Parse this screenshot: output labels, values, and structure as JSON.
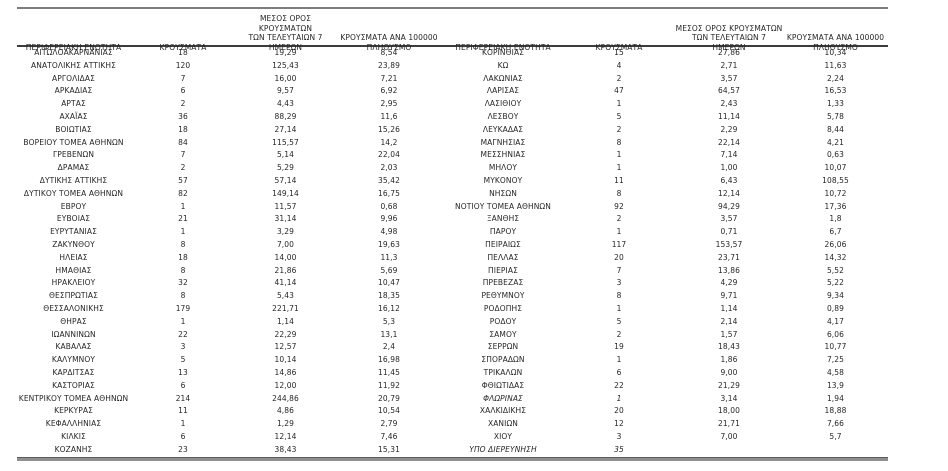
{
  "table": {
    "col_headers": {
      "region": "ΠΕΡΙΦΕΡΕΙΑΚΗ ΕΝΟΤΗΤΑ",
      "cases": "ΚΡΟΥΣΜΑΤΑ",
      "avg7": "ΜΕΣΟΣ ΟΡΟΣ ΚΡΟΥΣΜΑΤΩΝ\nΤΩΝ ΤΕΛΕΥΤΑΙΩΝ 7\nΗΜΕΡΩΝ",
      "per100k": "ΚΡΟΥΣΜΑΤΑ ΑΝΑ 100000\nΠΛΗΘΥΣΜΟ"
    },
    "left_rows": [
      {
        "region": "ΑΙΤΩΛΟΑΚΑΡΝΑΝΙΑΣ",
        "cases": "18",
        "avg7": "19,29",
        "per100k": "8,54"
      },
      {
        "region": "ΑΝΑΤΟΛΙΚΗΣ ΑΤΤΙΚΗΣ",
        "cases": "120",
        "avg7": "125,43",
        "per100k": "23,89"
      },
      {
        "region": "ΑΡΓΟΛΙΔΑΣ",
        "cases": "7",
        "avg7": "16,00",
        "per100k": "7,21"
      },
      {
        "region": "ΑΡΚΑΔΙΑΣ",
        "cases": "6",
        "avg7": "9,57",
        "per100k": "6,92"
      },
      {
        "region": "ΑΡΤΑΣ",
        "cases": "2",
        "avg7": "4,43",
        "per100k": "2,95"
      },
      {
        "region": "ΑΧΑΪΑΣ",
        "cases": "36",
        "avg7": "88,29",
        "per100k": "11,6"
      },
      {
        "region": "ΒΟΙΩΤΙΑΣ",
        "cases": "18",
        "avg7": "27,14",
        "per100k": "15,26"
      },
      {
        "region": "ΒΟΡΕΙΟΥ ΤΟΜΕΑ ΑΘΗΝΩΝ",
        "cases": "84",
        "avg7": "115,57",
        "per100k": "14,2"
      },
      {
        "region": "ΓΡΕΒΕΝΩΝ",
        "cases": "7",
        "avg7": "5,14",
        "per100k": "22,04"
      },
      {
        "region": "ΔΡΑΜΑΣ",
        "cases": "2",
        "avg7": "5,29",
        "per100k": "2,03"
      },
      {
        "region": "ΔΥΤΙΚΗΣ ΑΤΤΙΚΗΣ",
        "cases": "57",
        "avg7": "57,14",
        "per100k": "35,42"
      },
      {
        "region": "ΔΥΤΙΚΟΥ ΤΟΜΕΑ ΑΘΗΝΩΝ",
        "cases": "82",
        "avg7": "149,14",
        "per100k": "16,75"
      },
      {
        "region": "ΕΒΡΟΥ",
        "cases": "1",
        "avg7": "11,57",
        "per100k": "0,68"
      },
      {
        "region": "ΕΥΒΟΙΑΣ",
        "cases": "21",
        "avg7": "31,14",
        "per100k": "9,96"
      },
      {
        "region": "ΕΥΡΥΤΑΝΙΑΣ",
        "cases": "1",
        "avg7": "3,29",
        "per100k": "4,98"
      },
      {
        "region": "ΖΑΚΥΝΘΟΥ",
        "cases": "8",
        "avg7": "7,00",
        "per100k": "19,63"
      },
      {
        "region": "ΗΛΕΙΑΣ",
        "cases": "18",
        "avg7": "14,00",
        "per100k": "11,3"
      },
      {
        "region": "ΗΜΑΘΙΑΣ",
        "cases": "8",
        "avg7": "21,86",
        "per100k": "5,69"
      },
      {
        "region": "ΗΡΑΚΛΕΙΟΥ",
        "cases": "32",
        "avg7": "41,14",
        "per100k": "10,47"
      },
      {
        "region": "ΘΕΣΠΡΩΤΙΑΣ",
        "cases": "8",
        "avg7": "5,43",
        "per100k": "18,35"
      },
      {
        "region": "ΘΕΣΣΑΛΟΝΙΚΗΣ",
        "cases": "179",
        "avg7": "221,71",
        "per100k": "16,12"
      },
      {
        "region": "ΘΗΡΑΣ",
        "cases": "1",
        "avg7": "1,14",
        "per100k": "5,3"
      },
      {
        "region": "ΙΩΑΝΝΙΝΩΝ",
        "cases": "22",
        "avg7": "22,29",
        "per100k": "13,1"
      },
      {
        "region": "ΚΑΒΑΛΑΣ",
        "cases": "3",
        "avg7": "12,57",
        "per100k": "2,4"
      },
      {
        "region": "ΚΑΛΥΜΝΟΥ",
        "cases": "5",
        "avg7": "10,14",
        "per100k": "16,98"
      },
      {
        "region": "ΚΑΡΔΙΤΣΑΣ",
        "cases": "13",
        "avg7": "14,86",
        "per100k": "11,45"
      },
      {
        "region": "ΚΑΣΤΟΡΙΑΣ",
        "cases": "6",
        "avg7": "12,00",
        "per100k": "11,92"
      },
      {
        "region": "ΚΕΝΤΡΙΚΟΥ ΤΟΜΕΑ ΑΘΗΝΩΝ",
        "cases": "214",
        "avg7": "244,86",
        "per100k": "20,79"
      },
      {
        "region": "ΚΕΡΚΥΡΑΣ",
        "cases": "11",
        "avg7": "4,86",
        "per100k": "10,54"
      },
      {
        "region": "ΚΕΦΑΛΛΗΝΙΑΣ",
        "cases": "1",
        "avg7": "1,29",
        "per100k": "2,79"
      },
      {
        "region": "ΚΙΛΚΙΣ",
        "cases": "6",
        "avg7": "12,14",
        "per100k": "7,46"
      },
      {
        "region": "ΚΟΖΑΝΗΣ",
        "cases": "23",
        "avg7": "38,43",
        "per100k": "15,31"
      }
    ],
    "right_rows": [
      {
        "region": "ΚΟΡΙΝΘΙΑΣ",
        "cases": "15",
        "avg7": "27,86",
        "per100k": "10,34"
      },
      {
        "region": "ΚΩ",
        "cases": "4",
        "avg7": "2,71",
        "per100k": "11,63"
      },
      {
        "region": "ΛΑΚΩΝΙΑΣ",
        "cases": "2",
        "avg7": "3,57",
        "per100k": "2,24"
      },
      {
        "region": "ΛΑΡΙΣΑΣ",
        "cases": "47",
        "avg7": "64,57",
        "per100k": "16,53"
      },
      {
        "region": "ΛΑΣΙΘΙΟΥ",
        "cases": "1",
        "avg7": "2,43",
        "per100k": "1,33"
      },
      {
        "region": "ΛΕΣΒΟΥ",
        "cases": "5",
        "avg7": "11,14",
        "per100k": "5,78"
      },
      {
        "region": "ΛΕΥΚΑΔΑΣ",
        "cases": "2",
        "avg7": "2,29",
        "per100k": "8,44"
      },
      {
        "region": "ΜΑΓΝΗΣΙΑΣ",
        "cases": "8",
        "avg7": "22,14",
        "per100k": "4,21"
      },
      {
        "region": "ΜΕΣΣΗΝΙΑΣ",
        "cases": "1",
        "avg7": "7,14",
        "per100k": "0,63"
      },
      {
        "region": "ΜΗΛΟΥ",
        "cases": "1",
        "avg7": "1,00",
        "per100k": "10,07"
      },
      {
        "region": "ΜΥΚΟΝΟΥ",
        "cases": "11",
        "avg7": "6,43",
        "per100k": "108,55"
      },
      {
        "region": "ΝΗΣΩΝ",
        "cases": "8",
        "avg7": "12,14",
        "per100k": "10,72"
      },
      {
        "region": "ΝΟΤΙΟΥ ΤΟΜΕΑ ΑΘΗΝΩΝ",
        "cases": "92",
        "avg7": "94,29",
        "per100k": "17,36"
      },
      {
        "region": "ΞΑΝΘΗΣ",
        "cases": "2",
        "avg7": "3,57",
        "per100k": "1,8"
      },
      {
        "region": "ΠΑΡΟΥ",
        "cases": "1",
        "avg7": "0,71",
        "per100k": "6,7"
      },
      {
        "region": "ΠΕΙΡΑΙΩΣ",
        "cases": "117",
        "avg7": "153,57",
        "per100k": "26,06"
      },
      {
        "region": "ΠΕΛΛΑΣ",
        "cases": "20",
        "avg7": "23,71",
        "per100k": "14,32"
      },
      {
        "region": "ΠΙΕΡΙΑΣ",
        "cases": "7",
        "avg7": "13,86",
        "per100k": "5,52"
      },
      {
        "region": "ΠΡΕΒΕΖΑΣ",
        "cases": "3",
        "avg7": "4,29",
        "per100k": "5,22"
      },
      {
        "region": "ΡΕΘΥΜΝΟΥ",
        "cases": "8",
        "avg7": "9,71",
        "per100k": "9,34"
      },
      {
        "region": "ΡΟΔΟΠΗΣ",
        "cases": "1",
        "avg7": "1,14",
        "per100k": "0,89"
      },
      {
        "region": "ΡΟΔΟΥ",
        "cases": "5",
        "avg7": "2,14",
        "per100k": "4,17"
      },
      {
        "region": "ΣΑΜΟΥ",
        "cases": "2",
        "avg7": "1,57",
        "per100k": "6,06"
      },
      {
        "region": "ΣΕΡΡΩΝ",
        "cases": "19",
        "avg7": "18,43",
        "per100k": "10,77"
      },
      {
        "region": "ΣΠΟΡΑΔΩΝ",
        "cases": "1",
        "avg7": "1,86",
        "per100k": "7,25"
      },
      {
        "region": "ΤΡΙΚΑΛΩΝ",
        "cases": "6",
        "avg7": "9,00",
        "per100k": "4,58"
      },
      {
        "region": "ΦΘΙΩΤΙΔΑΣ",
        "cases": "22",
        "avg7": "21,29",
        "per100k": "13,9"
      },
      {
        "region": "ΦΛΩΡΙΝΑΣ",
        "cases": "1",
        "avg7": "3,14",
        "per100k": "1,94",
        "italic": true
      },
      {
        "region": "ΧΑΛΚΙΔΙΚΗΣ",
        "cases": "20",
        "avg7": "18,00",
        "per100k": "18,88"
      },
      {
        "region": "ΧΑΝΙΩΝ",
        "cases": "12",
        "avg7": "21,71",
        "per100k": "7,66"
      },
      {
        "region": "ΧΙΟΥ",
        "cases": "3",
        "avg7": "7,00",
        "per100k": "5,7"
      },
      {
        "region": "ΥΠΟ ΔΙΕΡΕΥΝΗΣΗ",
        "cases": "35",
        "avg7": "",
        "per100k": "",
        "italic": true
      }
    ]
  },
  "colors": {
    "text": "#262626",
    "rule_top": "#7d7d7d",
    "header_underline": "#3c3c3c",
    "rule_bottom": "#8f8f8f"
  }
}
